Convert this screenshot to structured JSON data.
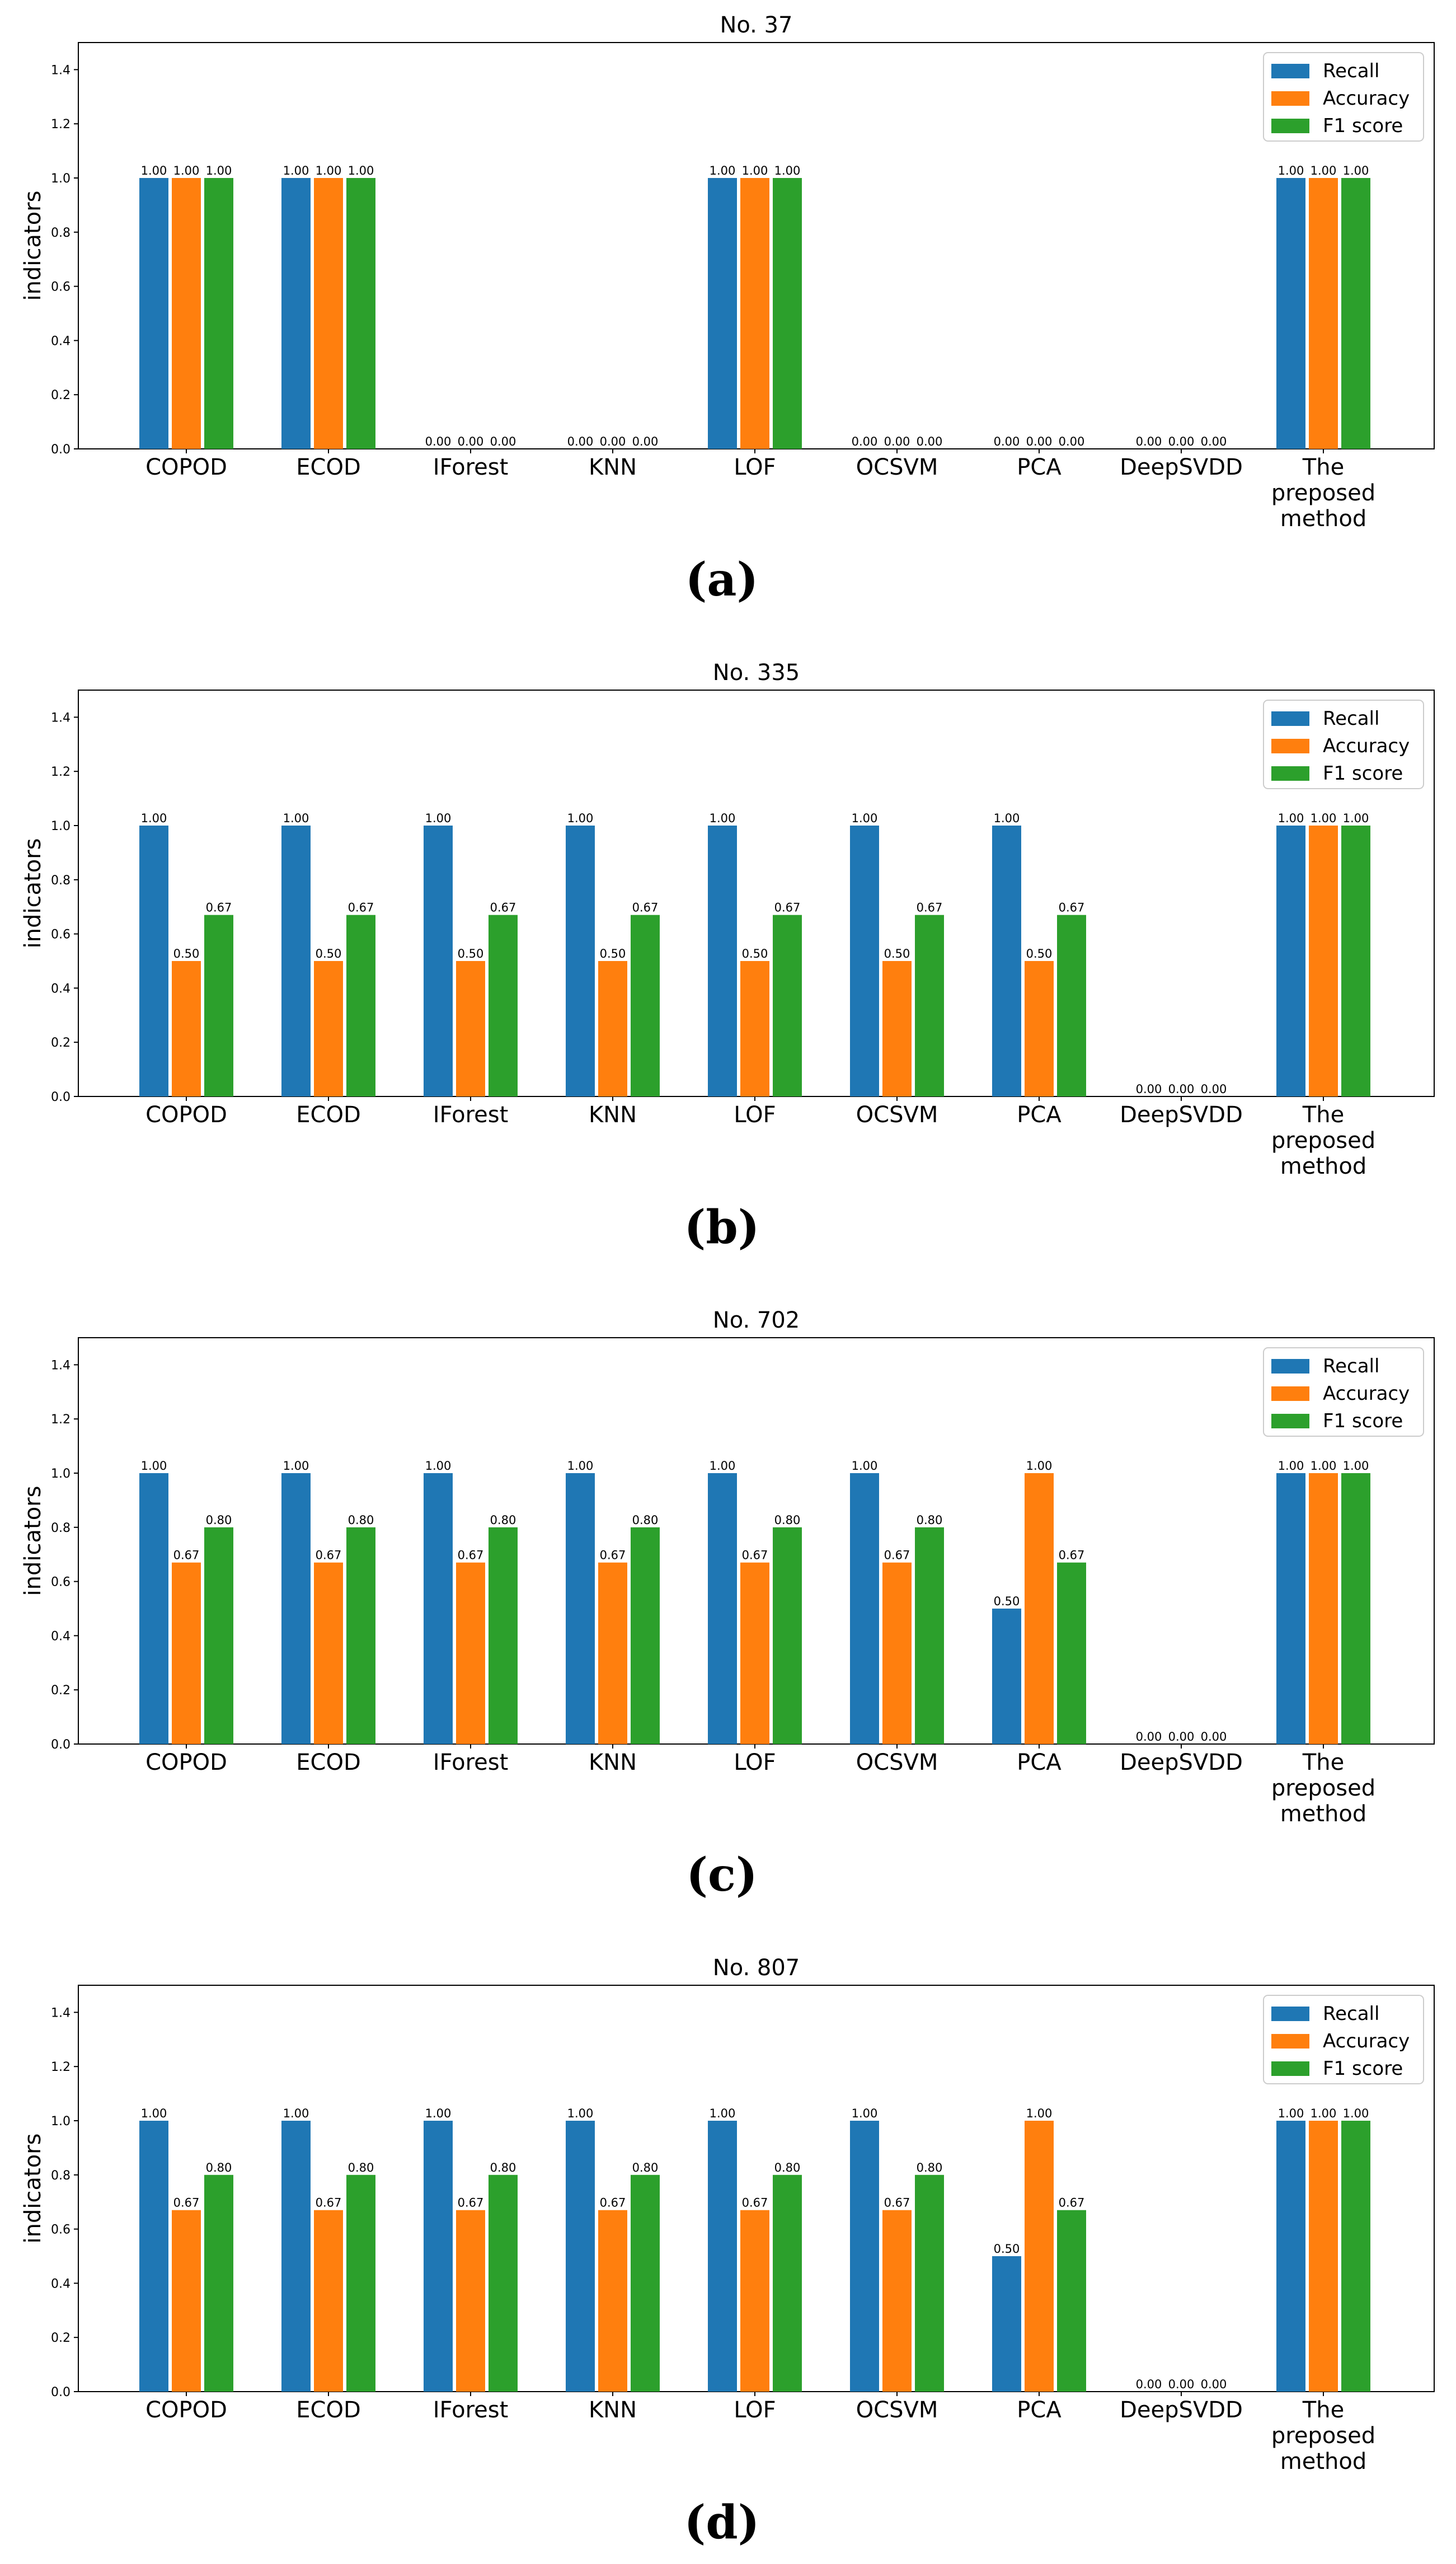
{
  "chart_data": [
    {
      "type": "bar",
      "title": "No. 37",
      "caption": "(a)",
      "ylabel": "indicators",
      "ylim": [
        0,
        1.5
      ],
      "yticks": [
        "0.0",
        "0.2",
        "0.4",
        "0.6",
        "0.8",
        "1.0",
        "1.2",
        "1.4"
      ],
      "categories": [
        "COPOD",
        "ECOD",
        "IForest",
        "KNN",
        "LOF",
        "OCSVM",
        "PCA",
        "DeepSVDD",
        "The preposed method"
      ],
      "legend_position": "top-right",
      "series": [
        {
          "name": "Recall",
          "color": "#1f77b4",
          "values": [
            1.0,
            1.0,
            0.0,
            0.0,
            1.0,
            0.0,
            0.0,
            0.0,
            1.0
          ]
        },
        {
          "name": "Accuracy",
          "color": "#ff7f0e",
          "values": [
            1.0,
            1.0,
            0.0,
            0.0,
            1.0,
            0.0,
            0.0,
            0.0,
            1.0
          ]
        },
        {
          "name": "F1 score",
          "color": "#2ca02c",
          "values": [
            1.0,
            1.0,
            0.0,
            0.0,
            1.0,
            0.0,
            0.0,
            0.0,
            1.0
          ]
        }
      ]
    },
    {
      "type": "bar",
      "title": "No. 335",
      "caption": "(b)",
      "ylabel": "indicators",
      "ylim": [
        0,
        1.5
      ],
      "yticks": [
        "0.0",
        "0.2",
        "0.4",
        "0.6",
        "0.8",
        "1.0",
        "1.2",
        "1.4"
      ],
      "categories": [
        "COPOD",
        "ECOD",
        "IForest",
        "KNN",
        "LOF",
        "OCSVM",
        "PCA",
        "DeepSVDD",
        "The preposed method"
      ],
      "legend_position": "top-right",
      "series": [
        {
          "name": "Recall",
          "color": "#1f77b4",
          "values": [
            1.0,
            1.0,
            1.0,
            1.0,
            1.0,
            1.0,
            1.0,
            0.0,
            1.0
          ]
        },
        {
          "name": "Accuracy",
          "color": "#ff7f0e",
          "values": [
            0.5,
            0.5,
            0.5,
            0.5,
            0.5,
            0.5,
            0.5,
            0.0,
            1.0
          ]
        },
        {
          "name": "F1 score",
          "color": "#2ca02c",
          "values": [
            0.67,
            0.67,
            0.67,
            0.67,
            0.67,
            0.67,
            0.67,
            0.0,
            1.0
          ]
        }
      ]
    },
    {
      "type": "bar",
      "title": "No. 702",
      "caption": "(c)",
      "ylabel": "indicators",
      "ylim": [
        0,
        1.5
      ],
      "yticks": [
        "0.0",
        "0.2",
        "0.4",
        "0.6",
        "0.8",
        "1.0",
        "1.2",
        "1.4"
      ],
      "categories": [
        "COPOD",
        "ECOD",
        "IForest",
        "KNN",
        "LOF",
        "OCSVM",
        "PCA",
        "DeepSVDD",
        "The preposed method"
      ],
      "legend_position": "top-right",
      "series": [
        {
          "name": "Recall",
          "color": "#1f77b4",
          "values": [
            1.0,
            1.0,
            1.0,
            1.0,
            1.0,
            1.0,
            0.5,
            0.0,
            1.0
          ]
        },
        {
          "name": "Accuracy",
          "color": "#ff7f0e",
          "values": [
            0.67,
            0.67,
            0.67,
            0.67,
            0.67,
            0.67,
            1.0,
            0.0,
            1.0
          ]
        },
        {
          "name": "F1 score",
          "color": "#2ca02c",
          "values": [
            0.8,
            0.8,
            0.8,
            0.8,
            0.8,
            0.8,
            0.67,
            0.0,
            1.0
          ]
        }
      ]
    },
    {
      "type": "bar",
      "title": "No. 807",
      "caption": "(d)",
      "ylabel": "indicators",
      "ylim": [
        0,
        1.5
      ],
      "yticks": [
        "0.0",
        "0.2",
        "0.4",
        "0.6",
        "0.8",
        "1.0",
        "1.2",
        "1.4"
      ],
      "categories": [
        "COPOD",
        "ECOD",
        "IForest",
        "KNN",
        "LOF",
        "OCSVM",
        "PCA",
        "DeepSVDD",
        "The preposed method"
      ],
      "legend_position": "top-right",
      "series": [
        {
          "name": "Recall",
          "color": "#1f77b4",
          "values": [
            1.0,
            1.0,
            1.0,
            1.0,
            1.0,
            1.0,
            0.5,
            0.0,
            1.0
          ]
        },
        {
          "name": "Accuracy",
          "color": "#ff7f0e",
          "values": [
            0.67,
            0.67,
            0.67,
            0.67,
            0.67,
            0.67,
            1.0,
            0.0,
            1.0
          ]
        },
        {
          "name": "F1 score",
          "color": "#2ca02c",
          "values": [
            0.8,
            0.8,
            0.8,
            0.8,
            0.8,
            0.8,
            0.67,
            0.0,
            1.0
          ]
        }
      ]
    }
  ]
}
